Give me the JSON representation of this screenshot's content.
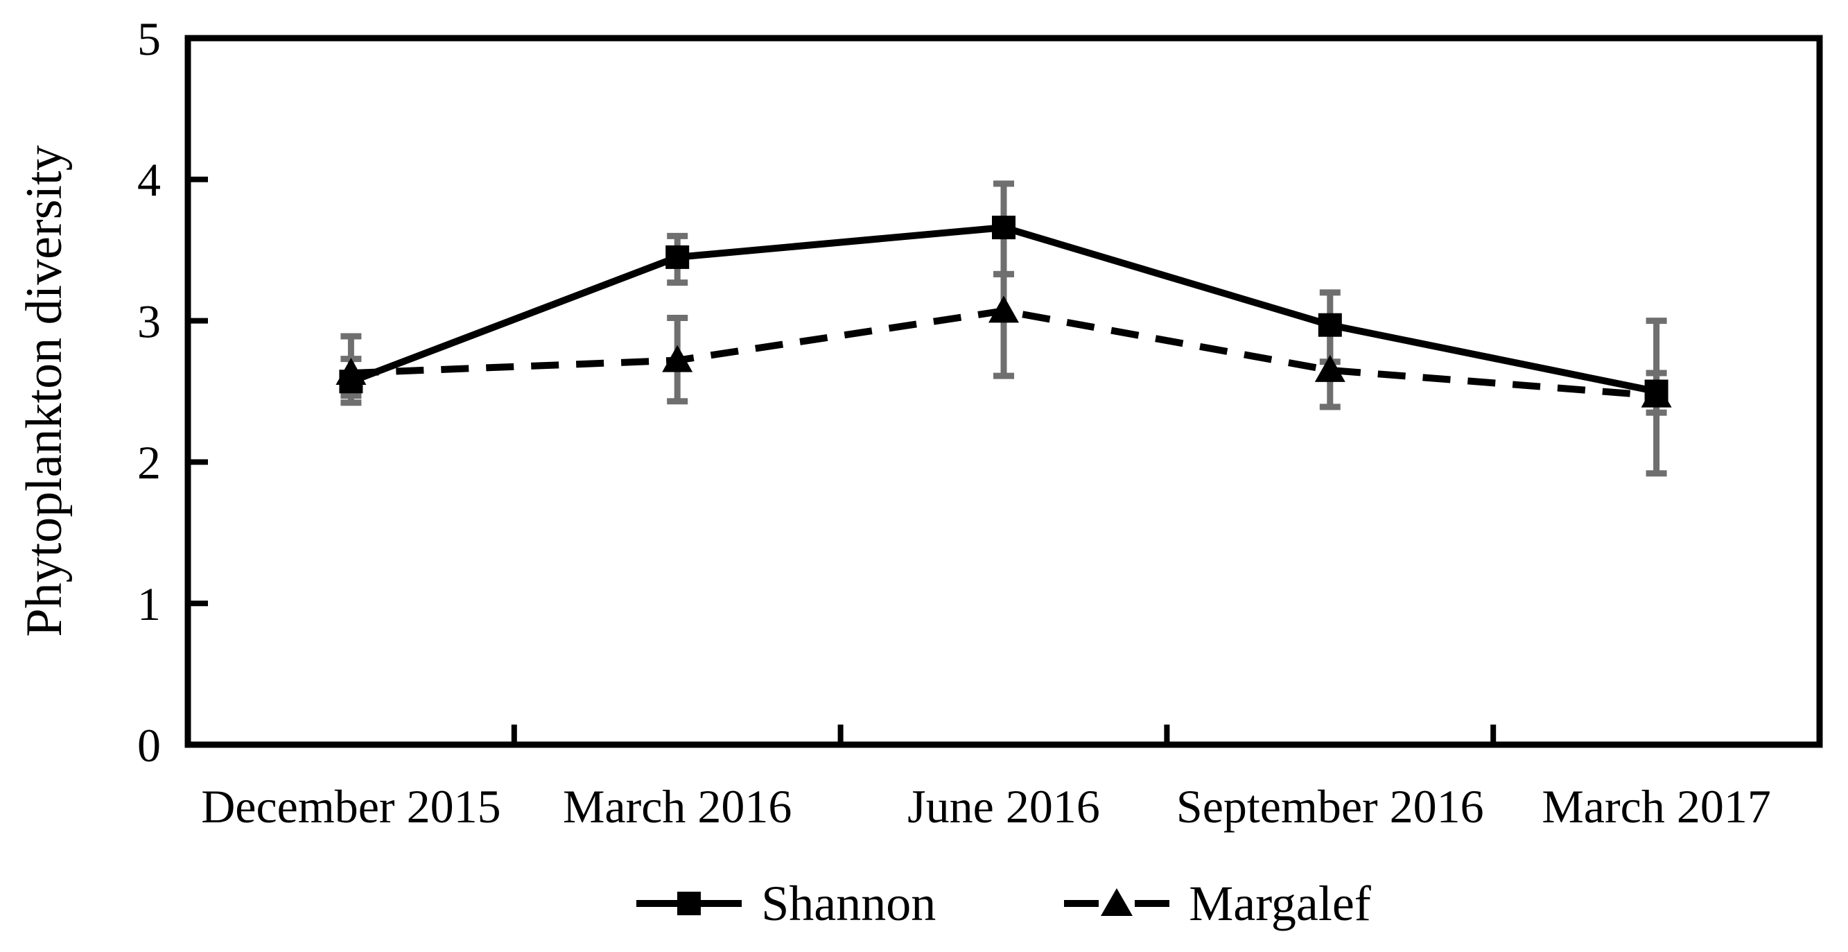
{
  "chart_data": {
    "type": "line",
    "title": "",
    "xlabel": "",
    "ylabel": "Phytoplankton diversity",
    "categories": [
      "December 2015",
      "March 2016",
      "June 2016",
      "September 2016",
      "March 2017"
    ],
    "ylim": [
      0,
      5
    ],
    "y_ticks": [
      0,
      1,
      2,
      3,
      4,
      5
    ],
    "grid": false,
    "legend_position": "bottom-center",
    "error_bar_color": "#6f6f6f",
    "axis_color": "#000000",
    "series": [
      {
        "name": "Shannon",
        "marker": "square",
        "line_style": "solid",
        "color": "#000000",
        "values": [
          2.57,
          3.45,
          3.66,
          2.97,
          2.5
        ],
        "err_up": [
          0.16,
          0.15,
          0.31,
          0.23,
          0.13
        ],
        "err_down": [
          0.1,
          0.18,
          0.33,
          0.26,
          0.15
        ]
      },
      {
        "name": "Margalef",
        "marker": "triangle",
        "line_style": "dashed",
        "color": "#000000",
        "values": [
          2.63,
          2.72,
          3.07,
          2.65,
          2.47
        ],
        "err_up": [
          0.26,
          0.3,
          0.26,
          0.26,
          0.53
        ],
        "err_down": [
          0.21,
          0.29,
          0.46,
          0.26,
          0.55
        ]
      }
    ]
  }
}
